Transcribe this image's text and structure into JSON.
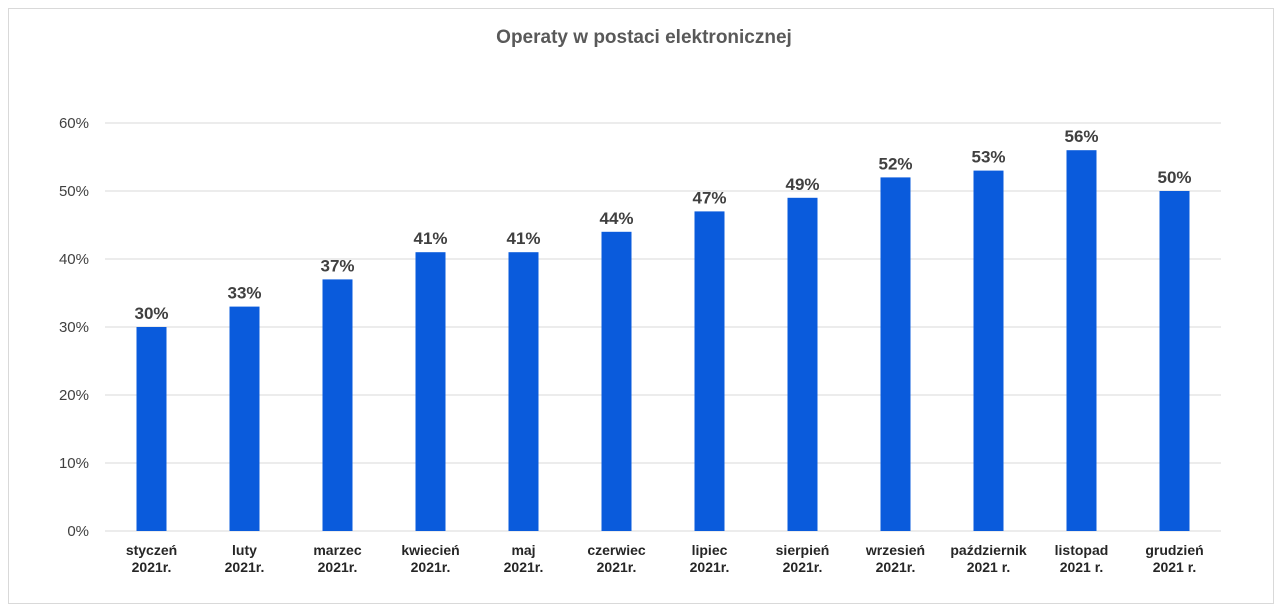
{
  "chart_data": {
    "type": "bar",
    "title": "Operaty w postaci elektronicznej",
    "categories": [
      [
        "styczeń",
        "2021r."
      ],
      [
        "luty",
        "2021r."
      ],
      [
        "marzec",
        "2021r."
      ],
      [
        "kwiecień",
        "2021r."
      ],
      [
        "maj",
        "2021r."
      ],
      [
        "czerwiec",
        "2021r."
      ],
      [
        "lipiec",
        "2021r."
      ],
      [
        "sierpień",
        "2021r."
      ],
      [
        "wrzesień",
        "2021r."
      ],
      [
        "październik",
        "2021 r."
      ],
      [
        "listopad",
        "2021 r."
      ],
      [
        "grudzień",
        "2021 r."
      ]
    ],
    "values": [
      30,
      33,
      37,
      41,
      41,
      44,
      47,
      49,
      52,
      53,
      56,
      50
    ],
    "data_labels": [
      "30%",
      "33%",
      "37%",
      "41%",
      "41%",
      "44%",
      "47%",
      "49%",
      "52%",
      "53%",
      "56%",
      "50%"
    ],
    "yticks": [
      0,
      10,
      20,
      30,
      40,
      50,
      60
    ],
    "ytick_labels": [
      "0%",
      "10%",
      "20%",
      "30%",
      "40%",
      "50%",
      "60%"
    ],
    "ylim": [
      0,
      60
    ],
    "grid": true,
    "legend": "none",
    "bar_color": "#0a5bdc",
    "gridline_color": "#d9d9d9"
  }
}
